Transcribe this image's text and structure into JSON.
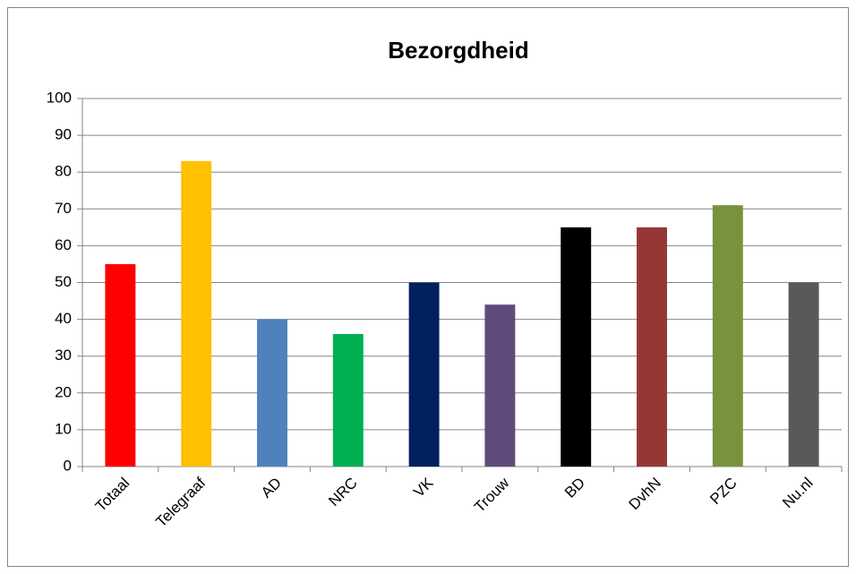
{
  "chart_data": {
    "type": "bar",
    "title": "Bezorgdheid",
    "categories": [
      "Totaal",
      "Telegraaf",
      "AD",
      "NRC",
      "VK",
      "Trouw",
      "BD",
      "DvhN",
      "PZC",
      "Nu.nl"
    ],
    "values": [
      55,
      83,
      40,
      36,
      50,
      44,
      65,
      65,
      71,
      50
    ],
    "colors": [
      "#ff0000",
      "#ffc000",
      "#4f81bd",
      "#00b050",
      "#002060",
      "#604a7b",
      "#000000",
      "#953735",
      "#77933c",
      "#595959"
    ],
    "ylim": [
      0,
      100
    ],
    "yticks": [
      0,
      10,
      20,
      30,
      40,
      50,
      60,
      70,
      80,
      90,
      100
    ],
    "grid": true
  }
}
